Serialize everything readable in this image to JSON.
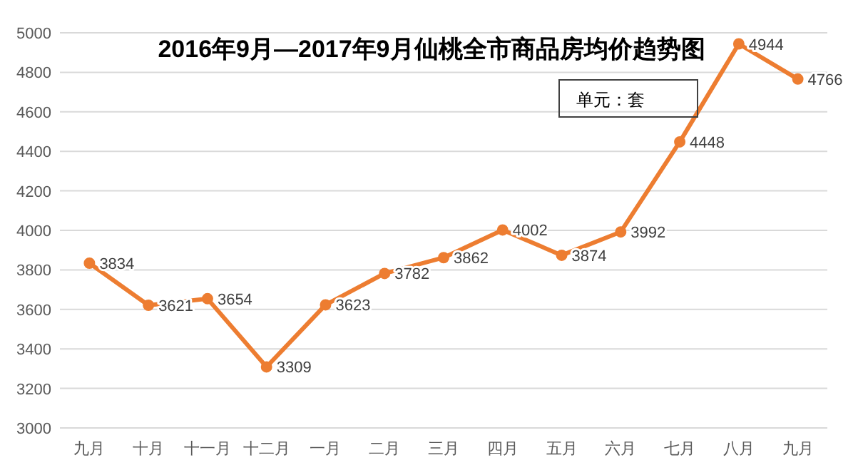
{
  "chart_data": {
    "type": "line",
    "title": "2016年9月—2017年9月仙桃全市商品房均价趋势图",
    "categories": [
      "九月",
      "十月",
      "十一月",
      "十二月",
      "一月",
      "二月",
      "三月",
      "四月",
      "五月",
      "六月",
      "七月",
      "八月",
      "九月"
    ],
    "series": [
      {
        "color": "#ed7d31",
        "values": [
          3834,
          3621,
          3654,
          3309,
          3623,
          3782,
          3862,
          4002,
          3874,
          3992,
          4448,
          4944,
          4766
        ]
      }
    ],
    "ylim": [
      3000,
      5000
    ],
    "yticks": [
      3000,
      3200,
      3400,
      3600,
      3800,
      4000,
      4200,
      4400,
      4600,
      4800,
      5000
    ],
    "grid": "y",
    "marker": "circle",
    "line_style": "solid",
    "data_labels": true,
    "annotations": [
      "单元：套"
    ]
  }
}
